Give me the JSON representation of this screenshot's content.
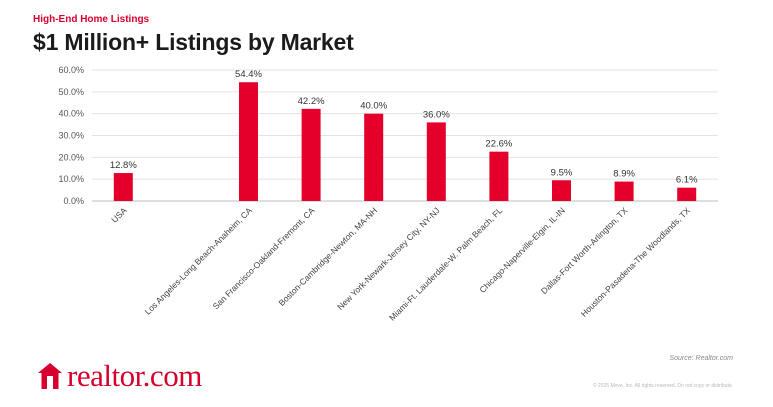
{
  "header": {
    "subtitle": "High-End Home Listings",
    "title": "$1 Million+ Listings by Market"
  },
  "colors": {
    "accent": "#d6002e",
    "bar": "#e4002b",
    "text": "#1b1b1b",
    "muted": "#8a8a8a"
  },
  "chart_data": {
    "type": "bar",
    "categories": [
      "USA",
      "Los Angeles-Long Beach-Anaheim, CA",
      "San Francisco-Oakland-Fremont, CA",
      "Boston-Cambridge-Newton, MA-NH",
      "New York-Newark-Jersey City, NY-NJ",
      "Miami-Ft. Lauderdale-W. Palm Beach, FL",
      "Chicago-Naperville-Elgin, IL-IN",
      "Dallas-Fort Worth-Arlington, TX",
      "Houston-Pasadena-The Woodlands, TX"
    ],
    "values": [
      12.8,
      54.4,
      42.2,
      40.0,
      36.0,
      22.6,
      9.5,
      8.9,
      6.1
    ],
    "data_labels": [
      "12.8%",
      "54.4%",
      "42.2%",
      "40.0%",
      "36.0%",
      "22.6%",
      "9.5%",
      "8.9%",
      "6.1%"
    ],
    "yticks": [
      "0.0%",
      "10.0%",
      "20.0%",
      "30.0%",
      "40.0%",
      "50.0%",
      "60.0%"
    ],
    "ylim": [
      0,
      60
    ],
    "gap_after_first": true,
    "grid": true,
    "legend": "none"
  },
  "footer": {
    "source": "Source: Realtor.com",
    "copyright": "© 2025 Move, Inc. All rights reserved. Do not copy or distribute.",
    "logo_text": "realtor.com",
    "logo_icon": "house-icon"
  }
}
